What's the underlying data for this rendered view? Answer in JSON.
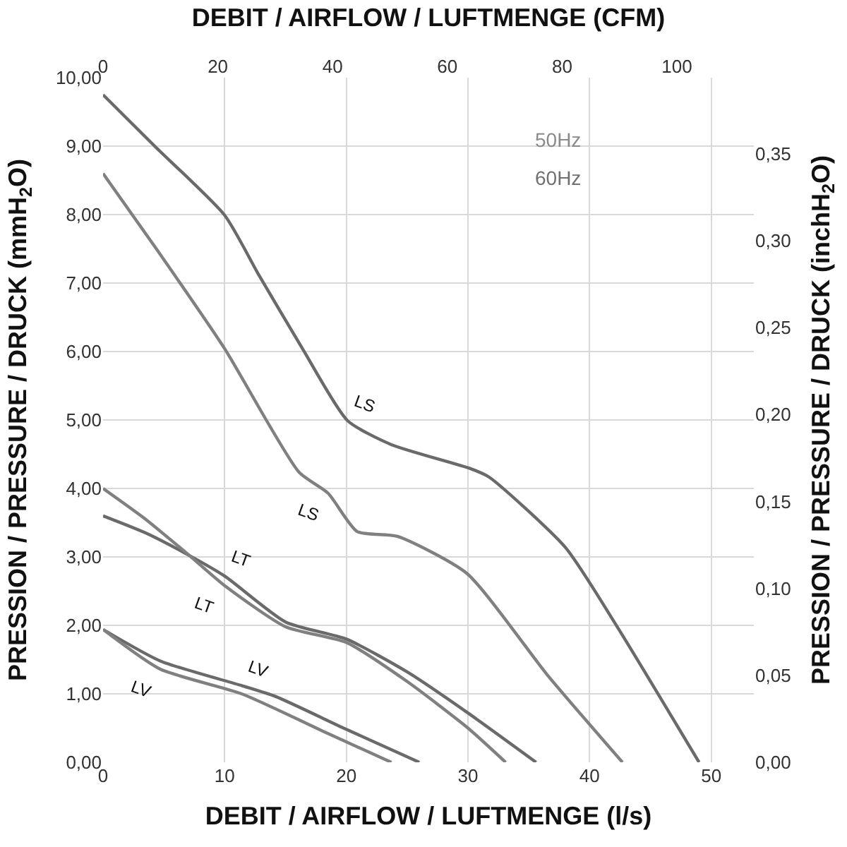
{
  "chart_data": {
    "type": "line",
    "xlabel": "DEBIT / AIRFLOW / LUFTMENGE (l/s)",
    "x2label": "DEBIT / AIRFLOW / LUFTMENGE (CFM)",
    "ylabel": "PRESSION / PRESSURE / DRUCK (mmH$_{2}$O)",
    "y2label": "PRESSION / PRESSURE / DRUCK (inchH$_{2}$O)",
    "xlim": [
      0,
      53.5
    ],
    "xticks": [
      0,
      10,
      20,
      30,
      40,
      50
    ],
    "x2lim": [
      0,
      113.4
    ],
    "x2ticks": [
      0,
      20,
      40,
      60,
      80,
      100
    ],
    "ylim": [
      0,
      10
    ],
    "yticks": [
      {
        "value": 0,
        "label": "0,00"
      },
      {
        "value": 1,
        "label": "1,00"
      },
      {
        "value": 2,
        "label": "2,00"
      },
      {
        "value": 3,
        "label": "3,00"
      },
      {
        "value": 4,
        "label": "4,00"
      },
      {
        "value": 5,
        "label": "5,00"
      },
      {
        "value": 6,
        "label": "6,00"
      },
      {
        "value": 7,
        "label": "7,00"
      },
      {
        "value": 8,
        "label": "8,00"
      },
      {
        "value": 9,
        "label": "9,00"
      },
      {
        "value": 10,
        "label": "10,00"
      }
    ],
    "y2lim": [
      0,
      0.3937
    ],
    "y2ticks": [
      {
        "value": 0,
        "label": "0,00"
      },
      {
        "value": 0.05,
        "label": "0,05"
      },
      {
        "value": 0.1,
        "label": "0,10"
      },
      {
        "value": 0.15,
        "label": "0,15"
      },
      {
        "value": 0.2,
        "label": "0,20"
      },
      {
        "value": 0.25,
        "label": "0,25"
      },
      {
        "value": 0.3,
        "label": "0,30"
      },
      {
        "value": 0.35,
        "label": "0,35"
      }
    ],
    "grid": true,
    "legend": false,
    "marker": "none",
    "line_style": "solid",
    "series": [
      {
        "name": "LS",
        "color": "#6a6a6a",
        "x": [
          0,
          4.3,
          10,
          12.8,
          16.4,
          20.1,
          23.7,
          30.2,
          31.7,
          38,
          42.3,
          49
        ],
        "values": [
          9.75,
          8.99,
          7.99,
          7.12,
          6.04,
          4.99,
          4.64,
          4.29,
          4.17,
          3.14,
          1.97,
          0
        ]
      },
      {
        "name": "LS",
        "color": "#808080",
        "x": [
          0,
          4.3,
          10,
          16.1,
          18.5,
          20.9,
          24.2,
          29.9,
          36.6,
          42.7
        ],
        "values": [
          8.6,
          7.52,
          6.04,
          4.24,
          3.93,
          3.37,
          3.3,
          2.76,
          1.26,
          0
        ]
      },
      {
        "name": "LT",
        "color": "#6a6a6a",
        "x": [
          0,
          3.5,
          7.1,
          10,
          15,
          20,
          25,
          30,
          35.6
        ],
        "values": [
          3.6,
          3.35,
          3.02,
          2.72,
          2.05,
          1.8,
          1.32,
          0.72,
          0
        ]
      },
      {
        "name": "LT",
        "color": "#808080",
        "x": [
          0,
          3.5,
          7.1,
          10,
          15,
          20,
          25,
          30,
          33.1
        ],
        "values": [
          4.0,
          3.55,
          3.02,
          2.58,
          1.98,
          1.75,
          1.18,
          0.5,
          0
        ]
      },
      {
        "name": "LV",
        "color": "#6a6a6a",
        "x": [
          0,
          4.7,
          11.4,
          14.2,
          19.9,
          26
        ],
        "values": [
          1.94,
          1.48,
          1.12,
          0.96,
          0.49,
          0
        ]
      },
      {
        "name": "LV",
        "color": "#808080",
        "x": [
          0,
          4.7,
          11.4,
          18.5,
          23.7
        ],
        "values": [
          1.94,
          1.36,
          1.0,
          0.42,
          0
        ]
      }
    ],
    "annotations": [
      "50Hz",
      "60Hz"
    ]
  }
}
